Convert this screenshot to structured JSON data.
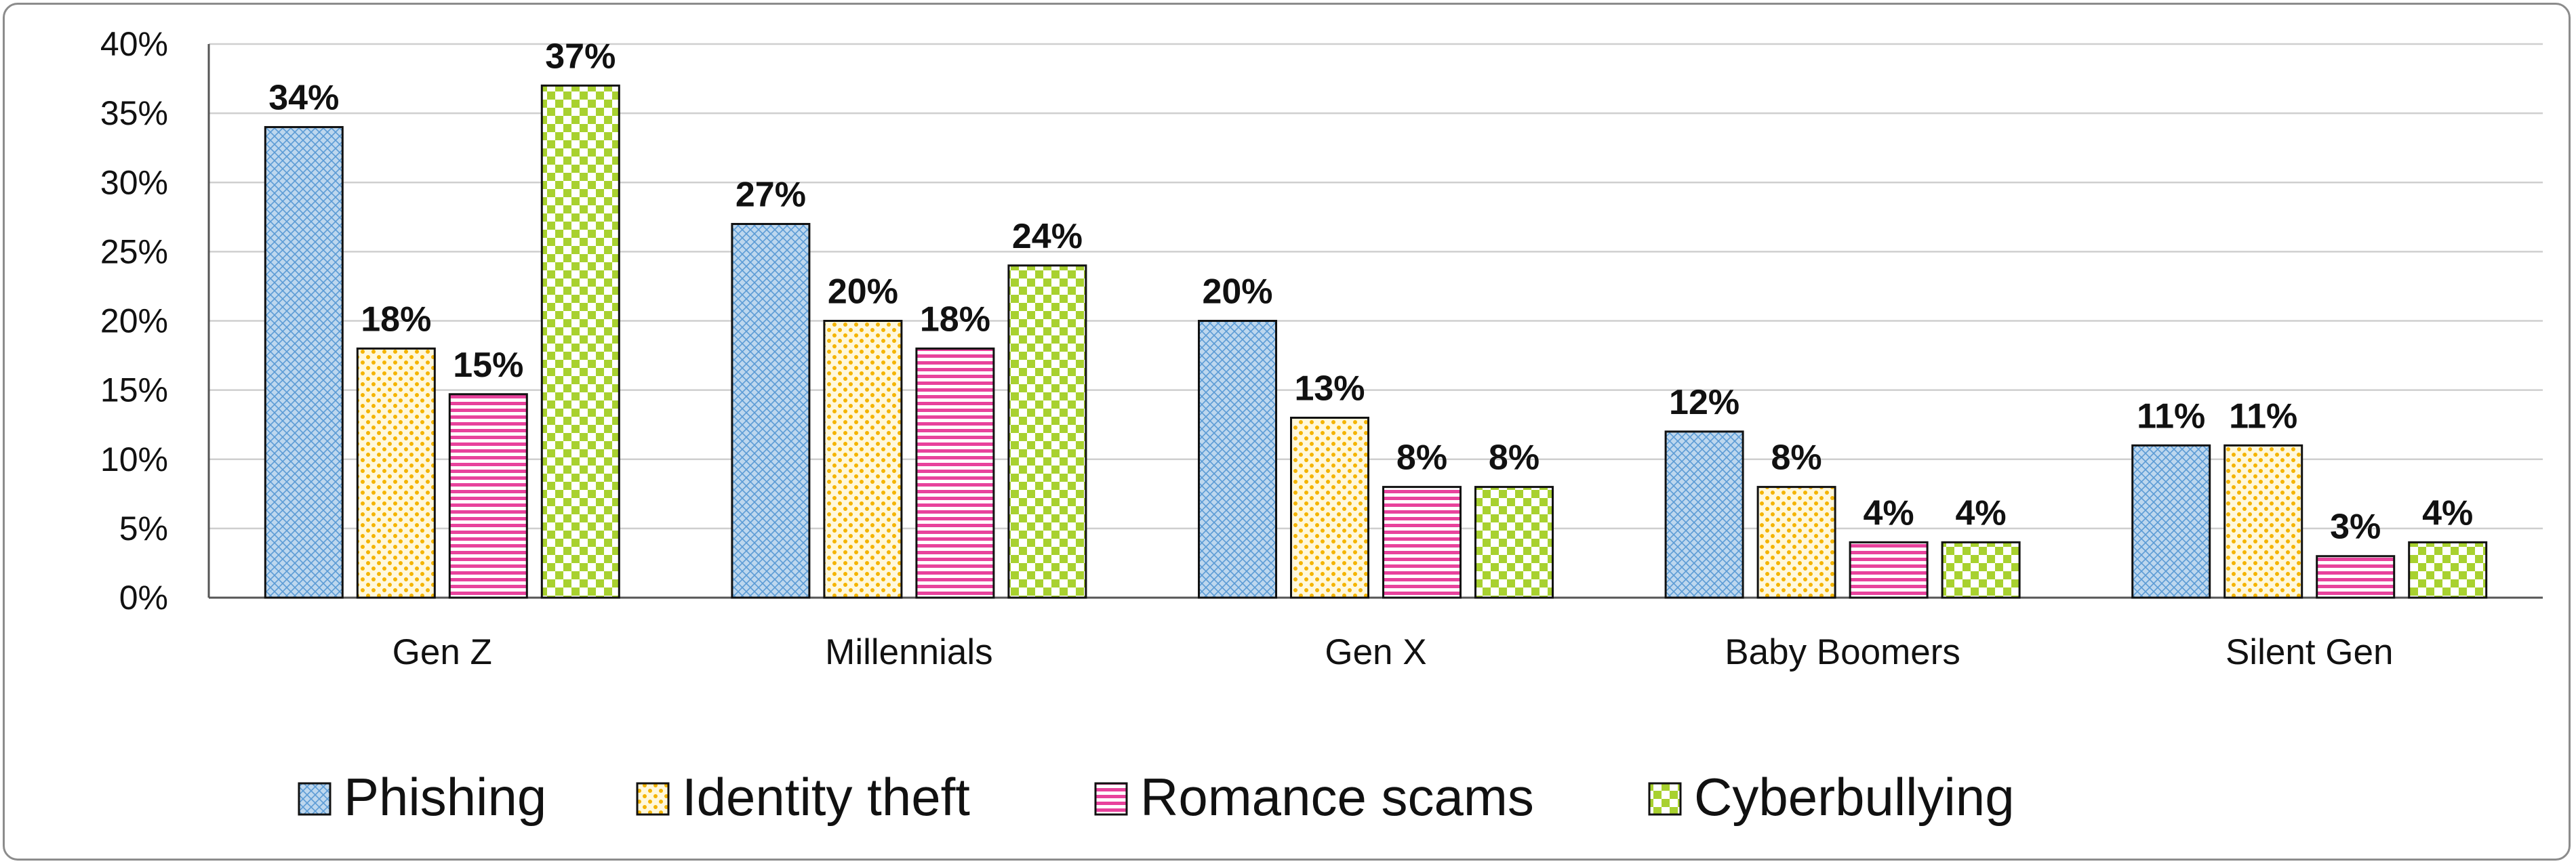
{
  "chart_data": {
    "type": "bar",
    "categories": [
      "Gen Z",
      "Millennials",
      "Gen X",
      "Baby Boomers",
      "Silent Gen"
    ],
    "series": [
      {
        "name": "Phishing",
        "values": [
          34,
          27,
          20,
          12,
          11
        ],
        "labels": [
          "34%",
          "27%",
          "20%",
          "12%",
          "11%"
        ],
        "color": "#bdd7ee",
        "pattern": "crosshatch"
      },
      {
        "name": "Identity theft",
        "values": [
          18,
          20,
          13,
          8,
          11
        ],
        "labels": [
          "18%",
          "20%",
          "13%",
          "8%",
          "11%"
        ],
        "color": "#ffe699",
        "pattern": "dots"
      },
      {
        "name": "Romance scams",
        "values": [
          14.7,
          18,
          8,
          4,
          3
        ],
        "labels": [
          "15%",
          "18%",
          "8%",
          "4%",
          "3%"
        ],
        "color": "#ff66cc",
        "pattern": "horizontal-lines"
      },
      {
        "name": "Cyberbullying",
        "values": [
          37,
          24,
          8,
          4,
          4
        ],
        "labels": [
          "37%",
          "24%",
          "8%",
          "4%",
          "4%"
        ],
        "color": "#c5e84a",
        "pattern": "checker"
      }
    ],
    "yticks": [
      "0%",
      "5%",
      "10%",
      "15%",
      "20%",
      "25%",
      "30%",
      "35%",
      "40%"
    ],
    "ylim": [
      0,
      40
    ],
    "grid": true,
    "legend": "bottom"
  }
}
